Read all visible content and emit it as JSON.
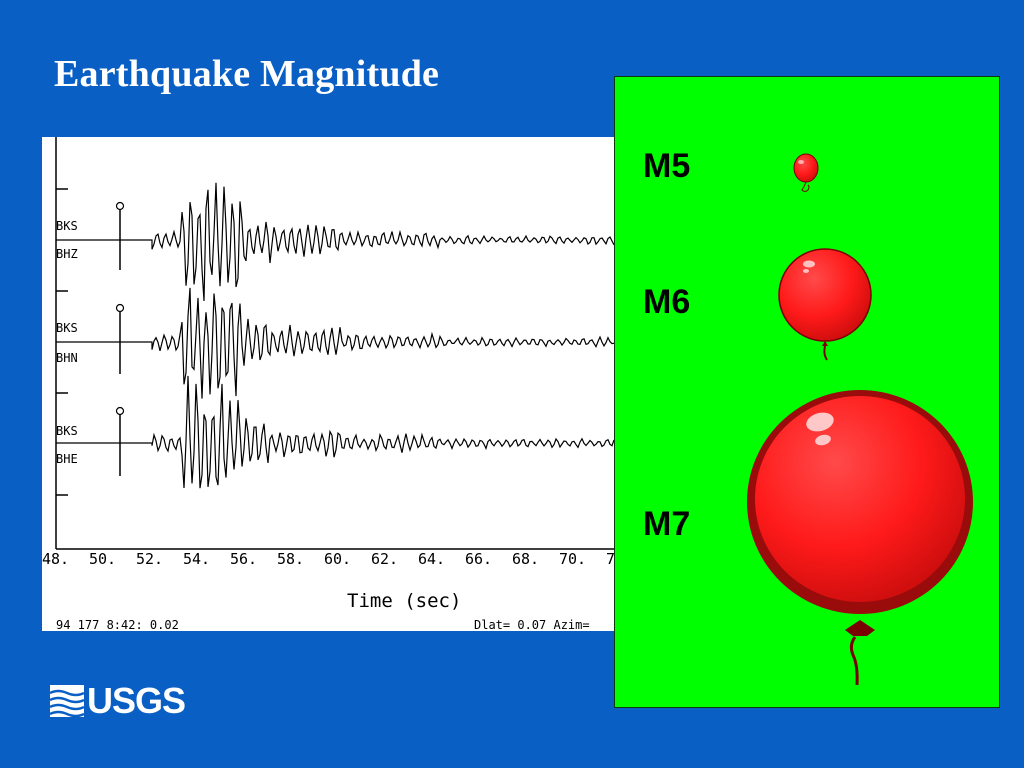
{
  "slide": {
    "title": "Earthquake Magnitude",
    "background_color": "#0a5fc4"
  },
  "chart_data": {
    "type": "line",
    "xlabel": "Time (sec)",
    "x_ticks": [
      "48.",
      "50.",
      "52.",
      "54.",
      "56.",
      "58.",
      "60.",
      "62.",
      "64.",
      "66.",
      "68.",
      "70.",
      "7"
    ],
    "series": [
      {
        "station": "BKS",
        "component": "BHZ"
      },
      {
        "station": "BKS",
        "component": "BHN"
      },
      {
        "station": "BKS",
        "component": "BHE"
      }
    ],
    "footer_left": "94  177   8:42:  0.02",
    "footer_right": "Dlat=    0.07  Azim="
  },
  "balloons": {
    "panel_color": "#00ff00",
    "balloon_color": "#ff1a1a",
    "items": [
      {
        "label": "M5"
      },
      {
        "label": "M6"
      },
      {
        "label": "M7"
      }
    ]
  },
  "logo": {
    "text": "USGS"
  }
}
